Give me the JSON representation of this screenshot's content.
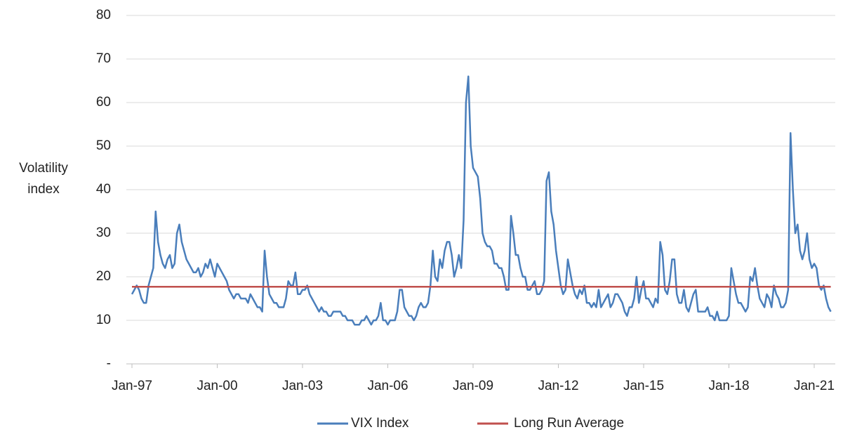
{
  "chart_data": {
    "type": "line",
    "ylabel_lines": [
      "Volatility",
      "index"
    ],
    "categories": [
      "Jan-97",
      null,
      null,
      null,
      null,
      null,
      null,
      null,
      null,
      null,
      null,
      null,
      null,
      null,
      null,
      null,
      null,
      null,
      null,
      null,
      null,
      null,
      null,
      null,
      null,
      null,
      null,
      null,
      null,
      null,
      null,
      null,
      null,
      null,
      null,
      null,
      "Jan-00",
      null,
      null,
      null,
      null,
      null,
      null,
      null,
      null,
      null,
      null,
      null,
      null,
      null,
      null,
      null,
      null,
      null,
      null,
      null,
      null,
      null,
      null,
      null,
      null,
      null,
      null,
      null,
      null,
      null,
      null,
      null,
      null,
      null,
      null,
      null,
      "Jan-03",
      null,
      null,
      null,
      null,
      null,
      null,
      null,
      null,
      null,
      null,
      null,
      null,
      null,
      null,
      null,
      null,
      null,
      null,
      null,
      null,
      null,
      null,
      null,
      null,
      null,
      null,
      null,
      null,
      null,
      null,
      null,
      null,
      null,
      null,
      null,
      "Jan-06",
      null,
      null,
      null,
      null,
      null,
      null,
      null,
      null,
      null,
      null,
      null,
      null,
      null,
      null,
      null,
      null,
      null,
      null,
      null,
      null,
      null,
      null,
      null,
      null,
      null,
      null,
      null,
      null,
      null,
      null,
      null,
      null,
      null,
      null,
      null,
      "Jan-09",
      null,
      null,
      null,
      null,
      null,
      null,
      null,
      null,
      null,
      null,
      null,
      null,
      null,
      null,
      null,
      null,
      null,
      null,
      null,
      null,
      null,
      null,
      null,
      null,
      null,
      null,
      null,
      null,
      null,
      null,
      null,
      null,
      null,
      null,
      null,
      "Jan-12",
      null,
      null,
      null,
      null,
      null,
      null,
      null,
      null,
      null,
      null,
      null,
      null,
      null,
      null,
      null,
      null,
      null,
      null,
      null,
      null,
      null,
      null,
      null,
      null,
      null,
      null,
      null,
      null,
      null,
      null,
      null,
      null,
      null,
      null,
      null,
      "Jan-15",
      null,
      null,
      null,
      null,
      null,
      null,
      null,
      null,
      null,
      null,
      null,
      null,
      null,
      null,
      null,
      null,
      null,
      null,
      null,
      null,
      null,
      null,
      null,
      null,
      null,
      null,
      null,
      null,
      null,
      null,
      null,
      null,
      null,
      null,
      null,
      "Jan-18",
      null,
      null,
      null,
      null,
      null,
      null,
      null,
      null,
      null,
      null,
      null,
      null,
      null,
      null,
      null,
      null,
      null,
      null,
      null,
      null,
      null,
      null,
      null,
      null,
      null,
      null,
      null,
      null,
      null,
      null,
      null,
      null,
      null,
      null,
      null,
      "Jan-21",
      null,
      null,
      null,
      null,
      null,
      null,
      null
    ],
    "series": [
      {
        "name": "VIX Index",
        "color": "#4a7ebb",
        "values": [
          16,
          17,
          18,
          17,
          15,
          14,
          14,
          18,
          20,
          22,
          35,
          28,
          25,
          23,
          22,
          24,
          25,
          22,
          23,
          30,
          32,
          28,
          26,
          24,
          23,
          22,
          21,
          21,
          22,
          20,
          21,
          23,
          22,
          24,
          22,
          20,
          23,
          22,
          21,
          20,
          19,
          17,
          16,
          15,
          16,
          16,
          15,
          15,
          15,
          14,
          16,
          15,
          14,
          13,
          13,
          12,
          26,
          20,
          16,
          15,
          14,
          14,
          13,
          13,
          13,
          15,
          19,
          18,
          18,
          21,
          16,
          16,
          17,
          17,
          18,
          16,
          15,
          14,
          13,
          12,
          13,
          12,
          12,
          11,
          11,
          12,
          12,
          12,
          12,
          11,
          11,
          10,
          10,
          10,
          9,
          9,
          9,
          10,
          10,
          11,
          10,
          9,
          10,
          10,
          11,
          14,
          10,
          10,
          9,
          10,
          10,
          10,
          12,
          17,
          17,
          13,
          12,
          11,
          11,
          10,
          11,
          13,
          14,
          13,
          13,
          14,
          18,
          26,
          20,
          19,
          24,
          22,
          26,
          28,
          28,
          25,
          20,
          22,
          25,
          22,
          33,
          60,
          66,
          50,
          45,
          44,
          43,
          38,
          30,
          28,
          27,
          27,
          26,
          23,
          23,
          22,
          22,
          20,
          17,
          17,
          34,
          30,
          25,
          25,
          22,
          20,
          20,
          17,
          17,
          18,
          19,
          16,
          16,
          17,
          19,
          42,
          44,
          35,
          32,
          26,
          22,
          18,
          16,
          17,
          24,
          21,
          18,
          16,
          15,
          17,
          16,
          18,
          14,
          14,
          13,
          14,
          13,
          17,
          13,
          14,
          15,
          16,
          13,
          14,
          16,
          16,
          15,
          14,
          12,
          11,
          13,
          13,
          15,
          20,
          14,
          17,
          19,
          15,
          15,
          14,
          13,
          15,
          14,
          28,
          25,
          17,
          16,
          19,
          24,
          24,
          16,
          14,
          14,
          17,
          13,
          12,
          14,
          16,
          17,
          12,
          12,
          12,
          12,
          13,
          11,
          11,
          10,
          12,
          10,
          10,
          10,
          10,
          11,
          22,
          19,
          16,
          14,
          14,
          13,
          12,
          13,
          20,
          19,
          22,
          18,
          15,
          14,
          13,
          16,
          15,
          13,
          18,
          16,
          15,
          13,
          13,
          14,
          17,
          53,
          40,
          30,
          32,
          26,
          24,
          26,
          30,
          24,
          22,
          23,
          22,
          18,
          17,
          18,
          15,
          13,
          12
        ]
      },
      {
        "name": "Long Run Average",
        "color": "#c0504d",
        "value": 17.7
      }
    ],
    "ylim": [
      0,
      80
    ],
    "yticks": [
      {
        "value": 0,
        "label": "-"
      },
      10,
      20,
      30,
      40,
      50,
      60,
      70,
      80
    ],
    "grid": true
  }
}
